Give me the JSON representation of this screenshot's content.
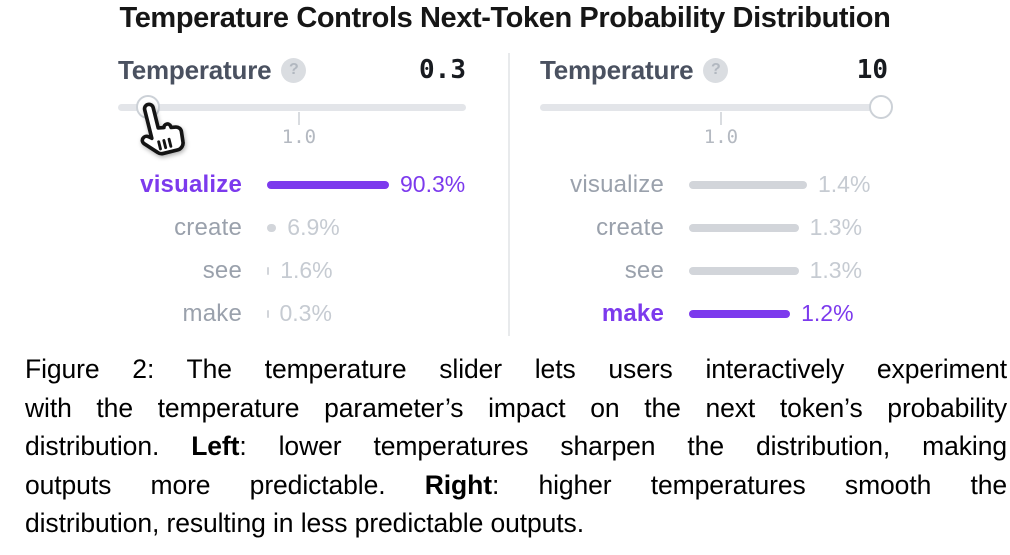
{
  "title": "Temperature Controls Next-Token Probability Distribution",
  "icons": {
    "help_glyph": "?"
  },
  "colors": {
    "accent": "#7c3aed",
    "inactive_text": "#9aa1ac",
    "pct_muted": "#c6cbd2",
    "bar_muted": "#d2d5da",
    "track": "#e3e5e9",
    "thumb_border": "#ccd1d7",
    "label_dark": "#4a5160",
    "value_dark": "#181b20",
    "tick_text": "#b4b9c1",
    "divider": "#e8eaec"
  },
  "panels": [
    {
      "side": "left",
      "control_label": "Temperature",
      "value": "0.3",
      "slider": {
        "tick_label": "1.0"
      },
      "tokens": [
        {
          "label": "visualize",
          "pct": 90.3,
          "pct_label": "90.3%",
          "active": true
        },
        {
          "label": "create",
          "pct": 6.9,
          "pct_label": "6.9%",
          "active": false
        },
        {
          "label": "see",
          "pct": 1.6,
          "pct_label": "1.6%",
          "active": false
        },
        {
          "label": "make",
          "pct": 0.3,
          "pct_label": "0.3%",
          "active": false
        }
      ]
    },
    {
      "side": "right",
      "control_label": "Temperature",
      "value": "10",
      "slider": {
        "tick_label": "1.0"
      },
      "tokens": [
        {
          "label": "visualize",
          "pct": 1.4,
          "pct_label": "1.4%",
          "active": false
        },
        {
          "label": "create",
          "pct": 1.3,
          "pct_label": "1.3%",
          "active": false
        },
        {
          "label": "see",
          "pct": 1.3,
          "pct_label": "1.3%",
          "active": false
        },
        {
          "label": "make",
          "pct": 1.2,
          "pct_label": "1.2%",
          "active": true
        }
      ]
    }
  ],
  "chart_data": [
    {
      "type": "bar",
      "title": "Temperature 0.3",
      "categories": [
        "visualize",
        "create",
        "see",
        "make"
      ],
      "values": [
        90.3,
        6.9,
        1.6,
        0.3
      ],
      "unit": "%",
      "highlighted_category": "visualize",
      "orientation": "horizontal",
      "grid": false
    },
    {
      "type": "bar",
      "title": "Temperature 10",
      "categories": [
        "visualize",
        "create",
        "see",
        "make"
      ],
      "values": [
        1.4,
        1.3,
        1.3,
        1.2
      ],
      "unit": "%",
      "highlighted_category": "make",
      "orientation": "horizontal",
      "grid": false
    }
  ],
  "caption": {
    "lines": [
      {
        "pre": "Figure 2: The temperature slider lets users interactively experiment",
        "bold": "",
        "post": ""
      },
      {
        "pre": "with the temperature parameter’s impact on the next token’s probability",
        "bold": "",
        "post": ""
      },
      {
        "pre": "distribution. ",
        "bold": "Left",
        "post": ": lower temperatures sharpen the distribution, making"
      },
      {
        "pre": "outputs more predictable. ",
        "bold": "Right",
        "post": ": higher temperatures smooth the"
      },
      {
        "pre": "distribution, resulting in less predictable outputs.",
        "bold": "",
        "post": ""
      }
    ]
  }
}
